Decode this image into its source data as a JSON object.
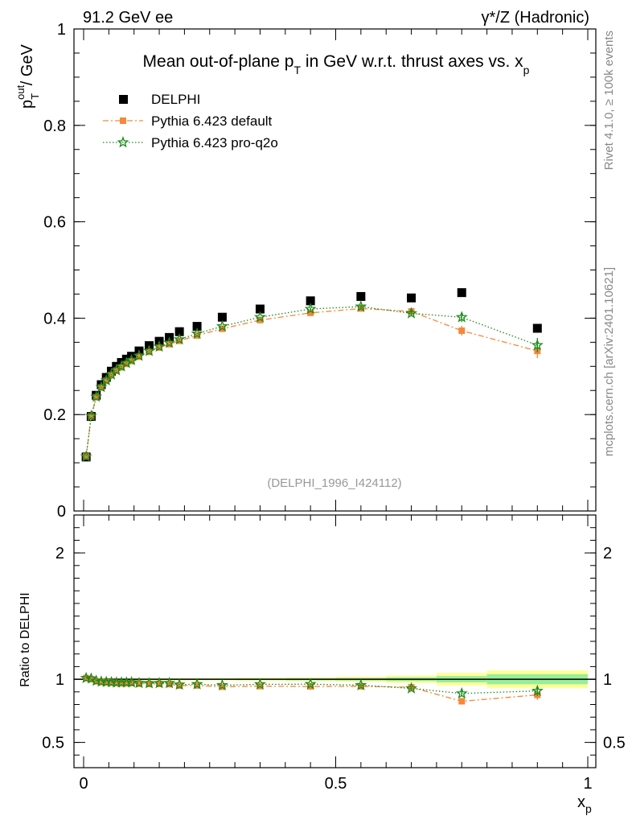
{
  "header": {
    "left": "91.2 GeV ee",
    "right": "γ*/Z (Hadronic)"
  },
  "side_labels": {
    "rivet": "Rivet 4.1.0, ≥ 100k events",
    "mcplots": "mcplots.cern.ch [arXiv:2401.10621]"
  },
  "chart_data": {
    "type": "scatter",
    "title": "Mean out-of-plane p_T in GeV w.r.t. thrust axes vs. x_p",
    "title_main": "Mean out-of-plane p",
    "title_sub1": "T",
    "title_mid": " in GeV w.r.t. thrust axes vs. x",
    "title_sub2": "p",
    "analysis_id": "(DELPHI_1996_I424112)",
    "ylabel_main": "p",
    "ylabel_sup": "out",
    "ylabel_sub": "T",
    "ylabel_unit": " / GeV",
    "xlabel_main": "x",
    "xlabel_sub": "p",
    "ratio_ylabel": "Ratio to DELPHI",
    "xlim": [
      0,
      1
    ],
    "ylim": [
      0,
      1
    ],
    "ratio_ylim": [
      0.3,
      2.3
    ],
    "x_ticks": [
      0,
      0.5,
      1
    ],
    "x_tick_labels": [
      "0",
      "0.5",
      "1"
    ],
    "y_ticks": [
      0,
      0.2,
      0.4,
      0.6,
      0.8,
      1
    ],
    "y_tick_labels": [
      "0",
      "0.2",
      "0.4",
      "0.6",
      "0.8",
      "1"
    ],
    "ratio_ticks": [
      0.5,
      1,
      2
    ],
    "ratio_tick_labels": [
      "0.5",
      "1",
      "2"
    ],
    "ratio_right_labels": [
      "0.5",
      "1",
      "2"
    ],
    "legend": [
      "DELPHI",
      "Pythia 6.423 default",
      "Pythia 6.423 pro-q2o"
    ],
    "legend_position": "top-left",
    "x": [
      0.005,
      0.015,
      0.025,
      0.035,
      0.045,
      0.055,
      0.065,
      0.075,
      0.085,
      0.095,
      0.11,
      0.13,
      0.15,
      0.17,
      0.19,
      0.225,
      0.275,
      0.35,
      0.45,
      0.55,
      0.65,
      0.75,
      0.9
    ],
    "band_edges": [
      0,
      0.01,
      0.02,
      0.03,
      0.04,
      0.05,
      0.06,
      0.07,
      0.08,
      0.09,
      0.1,
      0.12,
      0.14,
      0.16,
      0.18,
      0.2,
      0.25,
      0.3,
      0.4,
      0.5,
      0.6,
      0.7,
      0.8,
      1.0
    ],
    "band_halfwidth_yellow": [
      0.01,
      0.01,
      0.01,
      0.01,
      0.01,
      0.01,
      0.01,
      0.01,
      0.01,
      0.01,
      0.01,
      0.01,
      0.01,
      0.01,
      0.01,
      0.01,
      0.01,
      0.012,
      0.015,
      0.02,
      0.03,
      0.05,
      0.07
    ],
    "band_halfwidth_green": [
      0.005,
      0.005,
      0.005,
      0.005,
      0.005,
      0.005,
      0.005,
      0.005,
      0.005,
      0.005,
      0.005,
      0.005,
      0.005,
      0.005,
      0.005,
      0.005,
      0.005,
      0.006,
      0.008,
      0.01,
      0.015,
      0.025,
      0.04
    ],
    "series": [
      {
        "name": "DELPHI",
        "color": "#000000",
        "marker": "square",
        "values": [
          0.112,
          0.196,
          0.24,
          0.262,
          0.277,
          0.29,
          0.3,
          0.308,
          0.315,
          0.321,
          0.332,
          0.343,
          0.352,
          0.36,
          0.372,
          0.383,
          0.402,
          0.419,
          0.436,
          0.445,
          0.442,
          0.453,
          0.379
        ]
      },
      {
        "name": "Pythia 6.423 default",
        "color": "#f5883a",
        "marker": "square",
        "line": "dash-dot",
        "values": [
          0.113,
          0.196,
          0.236,
          0.256,
          0.27,
          0.282,
          0.291,
          0.298,
          0.305,
          0.311,
          0.32,
          0.33,
          0.339,
          0.346,
          0.353,
          0.364,
          0.378,
          0.396,
          0.411,
          0.42,
          0.414,
          0.374,
          0.332
        ],
        "errors": [
          0.001,
          0.001,
          0.001,
          0.001,
          0.001,
          0.001,
          0.001,
          0.001,
          0.001,
          0.001,
          0.001,
          0.001,
          0.001,
          0.001,
          0.001,
          0.001,
          0.002,
          0.002,
          0.003,
          0.004,
          0.006,
          0.01,
          0.015
        ]
      },
      {
        "name": "Pythia 6.423 pro-q2o",
        "color": "#1a8a1a",
        "marker": "star",
        "line": "dotted",
        "values": [
          0.113,
          0.197,
          0.237,
          0.257,
          0.271,
          0.283,
          0.292,
          0.3,
          0.307,
          0.313,
          0.322,
          0.332,
          0.341,
          0.349,
          0.356,
          0.368,
          0.383,
          0.402,
          0.419,
          0.424,
          0.41,
          0.402,
          0.344
        ],
        "errors": [
          0.001,
          0.001,
          0.001,
          0.001,
          0.001,
          0.001,
          0.001,
          0.001,
          0.001,
          0.001,
          0.001,
          0.001,
          0.001,
          0.001,
          0.001,
          0.001,
          0.002,
          0.002,
          0.003,
          0.004,
          0.006,
          0.01,
          0.015
        ]
      }
    ]
  }
}
